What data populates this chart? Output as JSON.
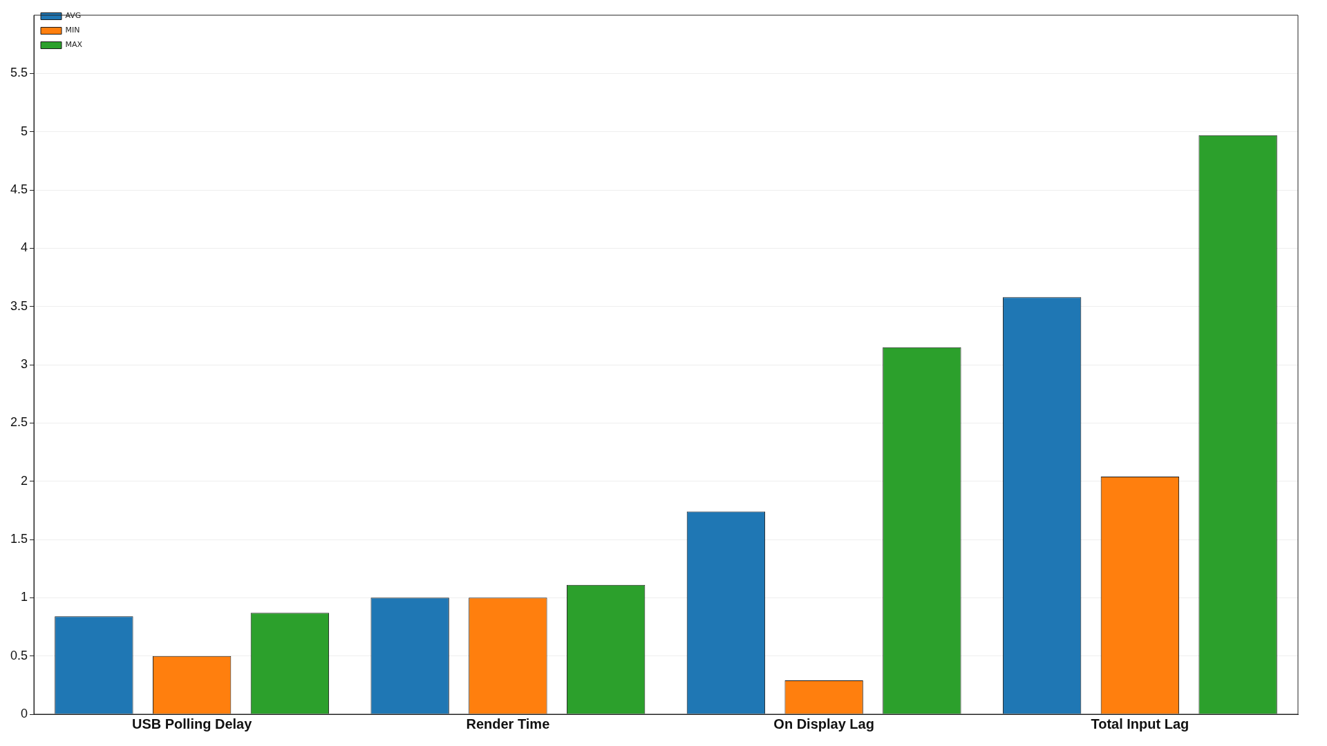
{
  "chart_data": {
    "type": "bar",
    "categories": [
      "USB Polling Delay",
      "Render Time",
      "On Display Lag",
      "Total Input Lag"
    ],
    "series": [
      {
        "name": "AVG",
        "color": "#1f77b4",
        "values": [
          0.84,
          1.0,
          1.74,
          3.58
        ]
      },
      {
        "name": "MIN",
        "color": "#ff7f0e",
        "values": [
          0.5,
          1.0,
          0.29,
          2.04
        ]
      },
      {
        "name": "MAX",
        "color": "#2ca02c",
        "values": [
          0.87,
          1.11,
          3.15,
          4.97
        ]
      }
    ],
    "ylim": [
      0,
      6
    ],
    "yticks": [
      0,
      0.5,
      1,
      1.5,
      2,
      2.5,
      3,
      3.5,
      4,
      4.5,
      5,
      5.5
    ],
    "grid": "y",
    "legend": "top left"
  }
}
